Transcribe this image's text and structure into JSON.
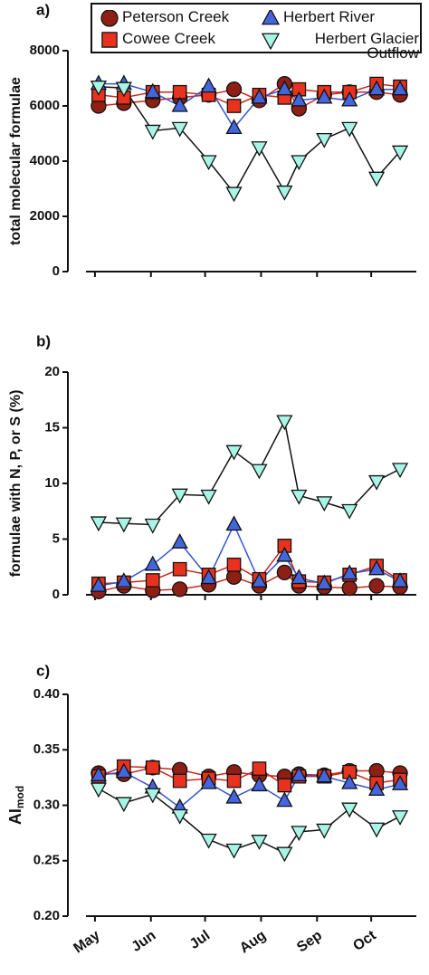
{
  "chart_data": [
    {
      "type": "line",
      "panel": "a)",
      "ylabel": "total molecular formulae",
      "x": [
        123,
        137,
        153,
        168,
        184,
        198,
        212,
        226,
        234,
        248,
        262,
        277,
        290
      ],
      "xlim": [
        106,
        299
      ],
      "ylim": [
        0,
        8000
      ],
      "yticks": [
        0,
        2000,
        4000,
        6000,
        8000
      ],
      "legend": "top",
      "series": [
        {
          "name": "Peterson Creek",
          "color": "#8e1f14",
          "line_color": "#c62a1c",
          "marker": "circle",
          "values": [
            6000,
            6100,
            6200,
            6300,
            6400,
            6600,
            6200,
            6800,
            5900,
            6400,
            6500,
            6500,
            6400
          ]
        },
        {
          "name": "Cowee Creek",
          "color": "#e8321e",
          "line_color": "#c62a1c",
          "marker": "square",
          "values": [
            6400,
            6300,
            6500,
            6500,
            6400,
            6000,
            6400,
            6300,
            6600,
            6500,
            6500,
            6800,
            6700
          ]
        },
        {
          "name": "Herbert River",
          "color": "#4466dd",
          "line_color": "#3355cc",
          "marker": "triangle-up",
          "values": [
            6800,
            6800,
            6500,
            6000,
            6700,
            5200,
            6300,
            6600,
            6200,
            6300,
            6200,
            6600,
            6600
          ]
        },
        {
          "name": "Herbert Glacier Outflow",
          "color": "#a8f5e6",
          "line_color": "#111111",
          "marker": "triangle-down",
          "values": [
            6700,
            6650,
            5100,
            5200,
            4000,
            2850,
            4500,
            2900,
            4000,
            4800,
            5200,
            3400,
            4350
          ]
        }
      ]
    },
    {
      "type": "line",
      "panel": "b)",
      "ylabel": "formulae with N, P, or S (%)",
      "x": [
        123,
        137,
        153,
        168,
        184,
        198,
        212,
        226,
        234,
        248,
        262,
        277,
        290
      ],
      "xlim": [
        106,
        299
      ],
      "ylim": [
        0,
        20
      ],
      "yticks": [
        0,
        5,
        10,
        15,
        20
      ],
      "series": [
        {
          "color": "#8e1f14",
          "line_color": "#c62a1c",
          "marker": "circle",
          "values": [
            0.3,
            0.8,
            0.4,
            0.5,
            0.9,
            1.6,
            0.8,
            2.0,
            0.8,
            0.7,
            0.6,
            0.8,
            0.7
          ]
        },
        {
          "color": "#e8321e",
          "line_color": "#c62a1c",
          "marker": "square",
          "values": [
            1.0,
            1.1,
            1.3,
            2.3,
            1.8,
            2.7,
            1.4,
            4.4,
            1.2,
            1.1,
            1.8,
            2.6,
            1.3
          ]
        },
        {
          "color": "#4466dd",
          "line_color": "#3355cc",
          "marker": "triangle-up",
          "values": [
            0.8,
            1.2,
            2.7,
            4.7,
            1.5,
            6.3,
            1.2,
            3.5,
            1.5,
            1.0,
            1.9,
            2.3,
            1.2
          ]
        },
        {
          "color": "#a8f5e6",
          "line_color": "#111111",
          "marker": "triangle-down",
          "values": [
            6.5,
            6.4,
            6.3,
            9.0,
            8.9,
            12.9,
            11.2,
            15.6,
            8.9,
            8.3,
            7.6,
            10.2,
            11.3
          ]
        }
      ]
    },
    {
      "type": "line",
      "panel": "c)",
      "ylabel": "AI",
      "ylabel_sub": "mod",
      "x": [
        123,
        137,
        153,
        168,
        184,
        198,
        212,
        226,
        234,
        248,
        262,
        277,
        290
      ],
      "xlim": [
        106,
        299
      ],
      "xticks": [
        {
          "value": 121,
          "label": "May"
        },
        {
          "value": 152,
          "label": "Jun"
        },
        {
          "value": 182,
          "label": "Jul"
        },
        {
          "value": 213,
          "label": "Aug"
        },
        {
          "value": 244,
          "label": "Sep"
        },
        {
          "value": 274,
          "label": "Oct"
        }
      ],
      "ylim": [
        0.2,
        0.4
      ],
      "yticks": [
        {
          "value": 0.2,
          "label": "0.20"
        },
        0.25,
        {
          "value": 0.3,
          "label": "0.30"
        },
        0.35,
        {
          "value": 0.4,
          "label": "0.40"
        }
      ],
      "series": [
        {
          "color": "#8e1f14",
          "line_color": "#c62a1c",
          "marker": "circle",
          "values": [
            0.329,
            0.328,
            0.334,
            0.332,
            0.326,
            0.33,
            0.327,
            0.326,
            0.328,
            0.327,
            0.331,
            0.331,
            0.329
          ]
        },
        {
          "color": "#e8321e",
          "line_color": "#c62a1c",
          "marker": "square",
          "values": [
            0.326,
            0.335,
            0.334,
            0.322,
            0.324,
            0.322,
            0.333,
            0.318,
            0.326,
            0.326,
            0.33,
            0.32,
            0.323
          ]
        },
        {
          "color": "#4466dd",
          "line_color": "#3355cc",
          "marker": "triangle-up",
          "values": [
            0.327,
            0.33,
            0.316,
            0.298,
            0.32,
            0.307,
            0.318,
            0.304,
            0.327,
            0.326,
            0.32,
            0.314,
            0.319
          ]
        },
        {
          "color": "#a8f5e6",
          "line_color": "#111111",
          "marker": "triangle-down",
          "values": [
            0.315,
            0.302,
            0.31,
            0.291,
            0.269,
            0.26,
            0.268,
            0.257,
            0.276,
            0.278,
            0.297,
            0.279,
            0.29
          ]
        }
      ]
    }
  ]
}
